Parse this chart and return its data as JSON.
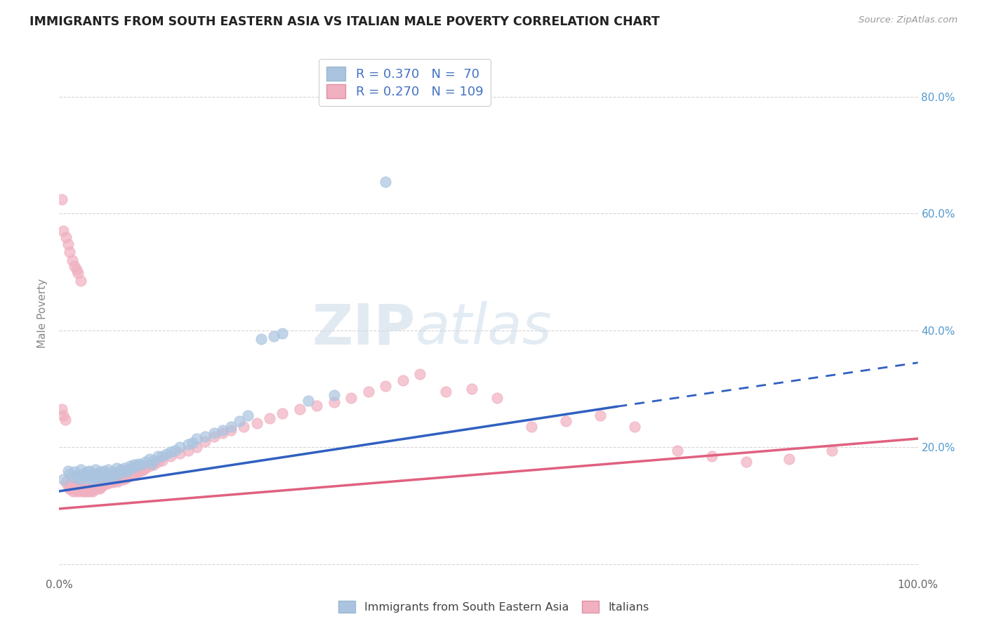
{
  "title": "IMMIGRANTS FROM SOUTH EASTERN ASIA VS ITALIAN MALE POVERTY CORRELATION CHART",
  "source_text": "Source: ZipAtlas.com",
  "ylabel": "Male Poverty",
  "xlim": [
    0.0,
    1.0
  ],
  "ylim": [
    -0.02,
    0.88
  ],
  "x_tick_positions": [
    0.0,
    0.2,
    0.4,
    0.6,
    0.8,
    1.0
  ],
  "x_tick_labels": [
    "0.0%",
    "",
    "",
    "",
    "",
    "100.0%"
  ],
  "y_tick_positions": [
    0.0,
    0.2,
    0.4,
    0.6,
    0.8
  ],
  "y_tick_labels_right": [
    "",
    "20.0%",
    "40.0%",
    "60.0%",
    "80.0%"
  ],
  "blue_color": "#aac4e0",
  "pink_color": "#f0b0c0",
  "blue_line_color": "#3060c0",
  "pink_line_color": "#e06080",
  "legend_text_color": "#4472c4",
  "R_blue": 0.37,
  "N_blue": 70,
  "R_pink": 0.27,
  "N_pink": 109,
  "watermark_ZIP": "ZIP",
  "watermark_atlas": "atlas",
  "blue_scatter_x": [
    0.005,
    0.01,
    0.012,
    0.015,
    0.018,
    0.02,
    0.022,
    0.025,
    0.025,
    0.028,
    0.03,
    0.032,
    0.033,
    0.035,
    0.037,
    0.038,
    0.04,
    0.042,
    0.043,
    0.045,
    0.046,
    0.048,
    0.05,
    0.052,
    0.053,
    0.055,
    0.057,
    0.058,
    0.06,
    0.062,
    0.063,
    0.065,
    0.067,
    0.07,
    0.072,
    0.074,
    0.076,
    0.078,
    0.08,
    0.082,
    0.085,
    0.087,
    0.09,
    0.092,
    0.095,
    0.1,
    0.105,
    0.108,
    0.11,
    0.115,
    0.12,
    0.125,
    0.13,
    0.135,
    0.14,
    0.15,
    0.155,
    0.16,
    0.17,
    0.18,
    0.19,
    0.2,
    0.21,
    0.22,
    0.235,
    0.25,
    0.26,
    0.29,
    0.32,
    0.38
  ],
  "blue_scatter_y": [
    0.145,
    0.16,
    0.155,
    0.15,
    0.158,
    0.148,
    0.152,
    0.145,
    0.162,
    0.155,
    0.15,
    0.158,
    0.148,
    0.16,
    0.152,
    0.145,
    0.155,
    0.162,
    0.148,
    0.155,
    0.15,
    0.158,
    0.148,
    0.16,
    0.153,
    0.155,
    0.162,
    0.148,
    0.155,
    0.15,
    0.158,
    0.155,
    0.165,
    0.155,
    0.162,
    0.16,
    0.165,
    0.158,
    0.162,
    0.168,
    0.165,
    0.17,
    0.168,
    0.172,
    0.17,
    0.175,
    0.18,
    0.172,
    0.178,
    0.185,
    0.185,
    0.188,
    0.192,
    0.195,
    0.2,
    0.205,
    0.208,
    0.215,
    0.218,
    0.225,
    0.23,
    0.235,
    0.245,
    0.255,
    0.385,
    0.39,
    0.395,
    0.28,
    0.29,
    0.655
  ],
  "pink_scatter_x": [
    0.003,
    0.005,
    0.007,
    0.008,
    0.01,
    0.012,
    0.013,
    0.015,
    0.016,
    0.018,
    0.018,
    0.02,
    0.02,
    0.022,
    0.023,
    0.024,
    0.025,
    0.026,
    0.027,
    0.028,
    0.029,
    0.03,
    0.031,
    0.032,
    0.033,
    0.034,
    0.035,
    0.036,
    0.037,
    0.038,
    0.039,
    0.04,
    0.041,
    0.042,
    0.043,
    0.044,
    0.045,
    0.046,
    0.047,
    0.048,
    0.05,
    0.052,
    0.054,
    0.056,
    0.058,
    0.06,
    0.062,
    0.064,
    0.066,
    0.068,
    0.07,
    0.073,
    0.075,
    0.078,
    0.08,
    0.083,
    0.086,
    0.089,
    0.092,
    0.095,
    0.098,
    0.1,
    0.105,
    0.11,
    0.115,
    0.12,
    0.13,
    0.14,
    0.15,
    0.16,
    0.17,
    0.18,
    0.19,
    0.2,
    0.215,
    0.23,
    0.245,
    0.26,
    0.28,
    0.3,
    0.32,
    0.34,
    0.36,
    0.38,
    0.4,
    0.42,
    0.45,
    0.48,
    0.51,
    0.55,
    0.59,
    0.63,
    0.67,
    0.72,
    0.76,
    0.8,
    0.85,
    0.9,
    0.003,
    0.005,
    0.008,
    0.01,
    0.012,
    0.015,
    0.018,
    0.02,
    0.022,
    0.025,
    0.028
  ],
  "pink_scatter_y": [
    0.265,
    0.255,
    0.248,
    0.14,
    0.135,
    0.13,
    0.128,
    0.135,
    0.125,
    0.128,
    0.132,
    0.125,
    0.13,
    0.128,
    0.132,
    0.125,
    0.13,
    0.128,
    0.132,
    0.125,
    0.128,
    0.125,
    0.128,
    0.13,
    0.125,
    0.128,
    0.13,
    0.125,
    0.128,
    0.13,
    0.125,
    0.128,
    0.13,
    0.132,
    0.135,
    0.13,
    0.132,
    0.135,
    0.13,
    0.132,
    0.135,
    0.138,
    0.14,
    0.138,
    0.14,
    0.142,
    0.14,
    0.142,
    0.145,
    0.142,
    0.145,
    0.148,
    0.145,
    0.148,
    0.15,
    0.152,
    0.155,
    0.155,
    0.158,
    0.16,
    0.162,
    0.165,
    0.168,
    0.17,
    0.175,
    0.178,
    0.185,
    0.19,
    0.195,
    0.2,
    0.21,
    0.218,
    0.225,
    0.23,
    0.235,
    0.242,
    0.25,
    0.258,
    0.265,
    0.272,
    0.278,
    0.285,
    0.295,
    0.305,
    0.315,
    0.325,
    0.295,
    0.3,
    0.285,
    0.235,
    0.245,
    0.255,
    0.235,
    0.195,
    0.185,
    0.175,
    0.18,
    0.195,
    0.625,
    0.57,
    0.56,
    0.548,
    0.535,
    0.52,
    0.51,
    0.505,
    0.498,
    0.485,
    0.15
  ],
  "blue_trend_start_x": 0.0,
  "blue_trend_start_y": 0.125,
  "blue_trend_end_x": 0.65,
  "blue_trend_end_y": 0.27,
  "blue_trend_dash_start_x": 0.65,
  "blue_trend_dash_start_y": 0.27,
  "blue_trend_dash_end_x": 1.0,
  "blue_trend_dash_end_y": 0.345,
  "pink_trend_start_x": 0.0,
  "pink_trend_start_y": 0.095,
  "pink_trend_end_x": 1.0,
  "pink_trend_end_y": 0.215,
  "background_color": "#ffffff",
  "grid_color": "#cccccc"
}
